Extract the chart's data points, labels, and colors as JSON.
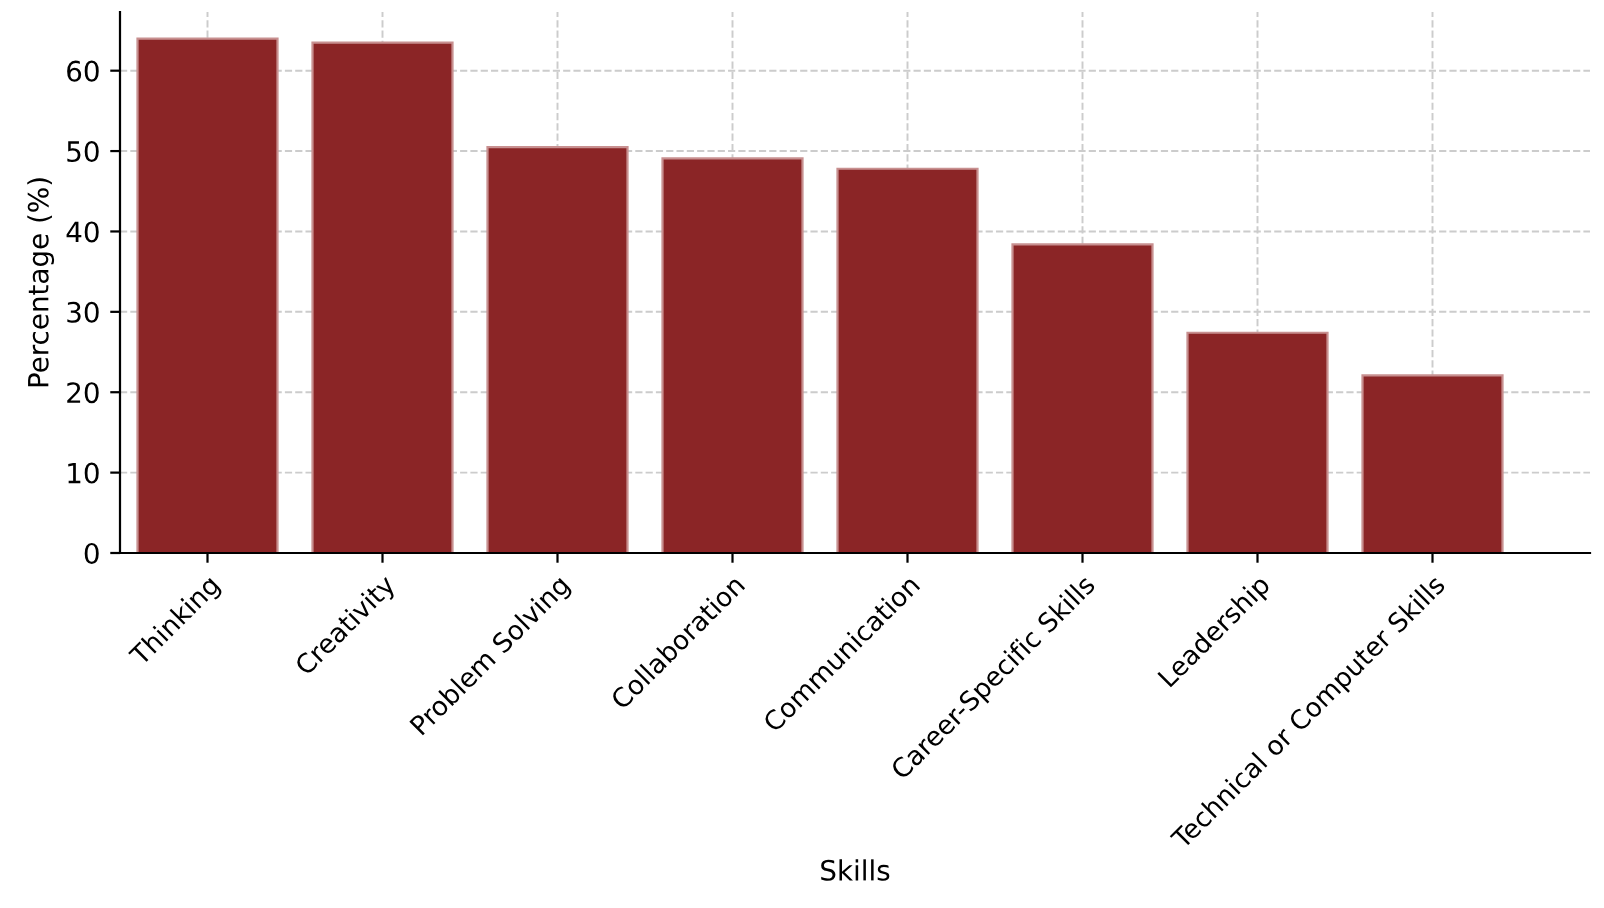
{
  "chart_data": {
    "type": "bar",
    "xlabel": "Skills",
    "ylabel": "Percentage (%)",
    "categories": [
      "Thinking",
      "Creativity",
      "Problem Solving",
      "Collaboration",
      "Communication",
      "Career-Specific Skills",
      "Leadership",
      "Technical or Computer Skills"
    ],
    "values": [
      64.0,
      63.5,
      50.5,
      49.1,
      47.8,
      38.4,
      27.4,
      22.1
    ],
    "color": "#8b2526",
    "ylim": [
      0,
      67.3
    ],
    "yticks": [
      0,
      10,
      20,
      30,
      40,
      50,
      60
    ],
    "grid": true
  }
}
